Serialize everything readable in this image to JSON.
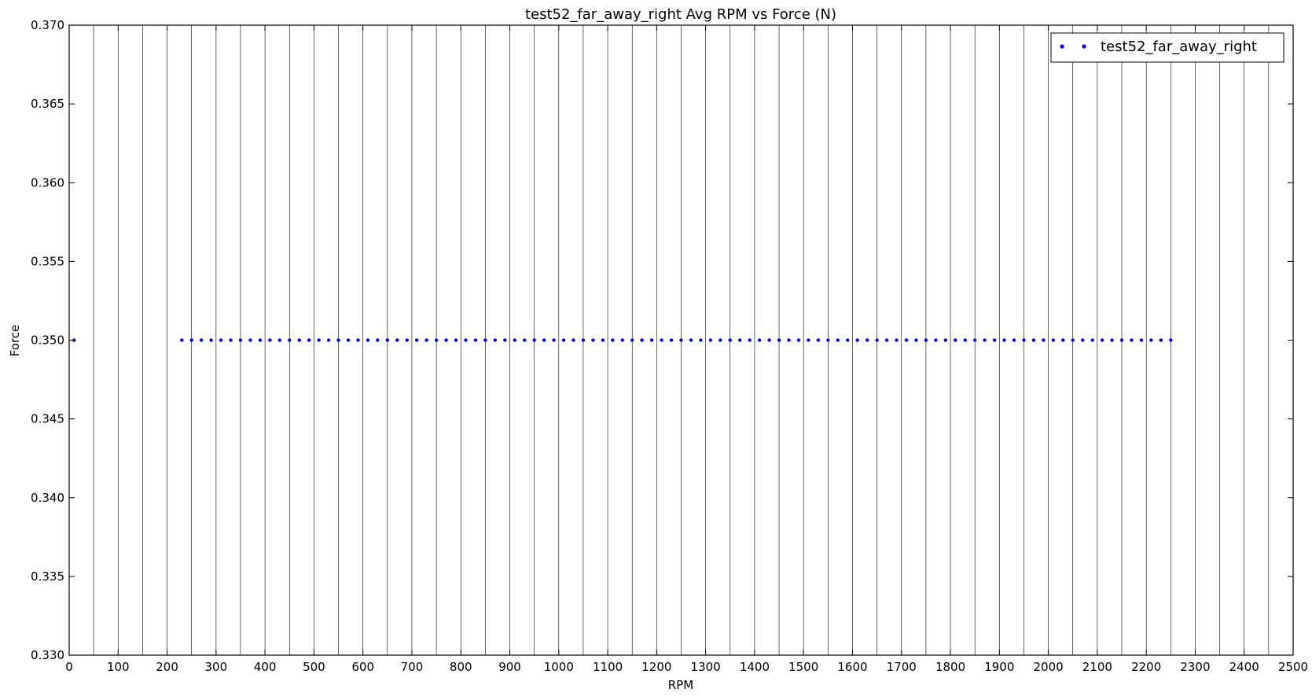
{
  "chart_data": {
    "type": "scatter",
    "title": "test52_far_away_right Avg RPM vs Force (N)",
    "xlabel": "RPM",
    "ylabel": "Force",
    "xlim": [
      0,
      2500
    ],
    "ylim": [
      0.33,
      0.37
    ],
    "xticks": [
      0,
      100,
      200,
      300,
      400,
      500,
      600,
      700,
      800,
      900,
      1000,
      1100,
      1200,
      1300,
      1400,
      1500,
      1600,
      1700,
      1800,
      1900,
      2000,
      2100,
      2200,
      2300,
      2400,
      2500
    ],
    "yticks": [
      "0.330",
      "0.335",
      "0.340",
      "0.345",
      "0.350",
      "0.355",
      "0.360",
      "0.365",
      "0.370"
    ],
    "x_gridlines_every": 50,
    "grid": "vertical lines every 50 RPM",
    "legend_position": "top-right",
    "series": [
      {
        "name": "test52_far_away_right",
        "color": "#0000ff",
        "marker": "dot",
        "x": [
          10,
          230,
          250,
          270,
          290,
          310,
          330,
          350,
          370,
          390,
          410,
          430,
          450,
          470,
          490,
          510,
          530,
          550,
          570,
          590,
          610,
          630,
          650,
          670,
          690,
          710,
          730,
          750,
          770,
          790,
          810,
          830,
          850,
          870,
          890,
          910,
          930,
          950,
          970,
          990,
          1010,
          1030,
          1050,
          1070,
          1090,
          1110,
          1130,
          1150,
          1170,
          1190,
          1210,
          1230,
          1250,
          1270,
          1290,
          1310,
          1330,
          1350,
          1370,
          1390,
          1410,
          1430,
          1450,
          1470,
          1490,
          1510,
          1530,
          1550,
          1570,
          1590,
          1610,
          1630,
          1650,
          1670,
          1690,
          1710,
          1730,
          1750,
          1770,
          1790,
          1810,
          1830,
          1850,
          1870,
          1890,
          1910,
          1930,
          1950,
          1970,
          1990,
          2010,
          2030,
          2050,
          2070,
          2090,
          2110,
          2130,
          2150,
          2170,
          2190,
          2210,
          2230,
          2250
        ],
        "y": 0.35
      }
    ]
  }
}
